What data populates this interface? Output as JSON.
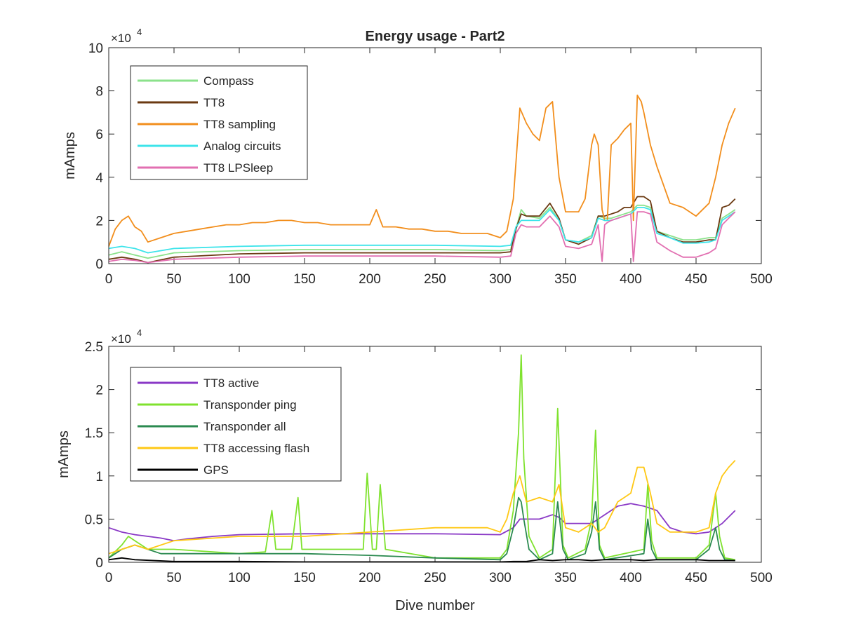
{
  "chart_data": [
    {
      "type": "line",
      "title": "Energy usage - Part2",
      "xlabel": "",
      "ylabel": "mAmps",
      "xlim": [
        0,
        500
      ],
      "ylim": [
        0,
        100000
      ],
      "xticks": [
        "0",
        "50",
        "100",
        "150",
        "200",
        "250",
        "300",
        "350",
        "400",
        "450",
        "500"
      ],
      "yticks": [
        "0",
        "2",
        "4",
        "6",
        "8",
        "10"
      ],
      "y_exponent_base": "×10",
      "y_exponent": "4",
      "legend_position": "top-left",
      "series": [
        {
          "name": "Compass",
          "color": "#8be28b",
          "x": [
            0,
            10,
            20,
            30,
            50,
            100,
            150,
            200,
            250,
            300,
            308,
            312,
            316,
            320,
            330,
            338,
            345,
            350,
            360,
            370,
            375,
            380,
            385,
            390,
            395,
            400,
            405,
            410,
            415,
            420,
            430,
            440,
            450,
            460,
            465,
            470,
            475,
            480
          ],
          "y": [
            4000,
            5500,
            4000,
            2500,
            5000,
            6000,
            6500,
            6500,
            6500,
            6000,
            6500,
            16000,
            25000,
            22000,
            21000,
            26000,
            20000,
            11000,
            10000,
            13000,
            22000,
            21000,
            21000,
            22000,
            23000,
            24000,
            27000,
            27000,
            26000,
            15000,
            13000,
            11000,
            11000,
            12000,
            12000,
            21000,
            23000,
            25000
          ]
        },
        {
          "name": "TT8",
          "color": "#6b3a12",
          "x": [
            0,
            10,
            20,
            30,
            50,
            100,
            150,
            200,
            250,
            300,
            308,
            312,
            316,
            320,
            330,
            338,
            345,
            350,
            360,
            370,
            375,
            380,
            385,
            390,
            395,
            400,
            405,
            410,
            415,
            420,
            430,
            440,
            450,
            460,
            465,
            470,
            475,
            480
          ],
          "y": [
            2000,
            3000,
            2000,
            500,
            3000,
            4500,
            5000,
            5000,
            5000,
            5000,
            5500,
            16000,
            23000,
            22000,
            22000,
            28000,
            21000,
            11000,
            9000,
            12000,
            22000,
            22000,
            23000,
            24000,
            26000,
            26000,
            31000,
            31000,
            29000,
            15000,
            12000,
            10000,
            10000,
            11000,
            11000,
            26000,
            27000,
            30000
          ]
        },
        {
          "name": "TT8 sampling",
          "color": "#f28e1c",
          "x": [
            0,
            5,
            10,
            15,
            20,
            25,
            30,
            40,
            50,
            60,
            70,
            80,
            90,
            100,
            110,
            120,
            130,
            140,
            150,
            160,
            170,
            180,
            190,
            200,
            205,
            210,
            220,
            230,
            240,
            250,
            260,
            270,
            280,
            290,
            300,
            305,
            310,
            315,
            320,
            325,
            330,
            335,
            340,
            345,
            350,
            360,
            365,
            370,
            372,
            375,
            378,
            380,
            382,
            385,
            390,
            395,
            400,
            402,
            405,
            408,
            410,
            415,
            420,
            430,
            440,
            450,
            460,
            465,
            470,
            475,
            480
          ],
          "y": [
            8000,
            16000,
            20000,
            22000,
            17000,
            15000,
            10000,
            12000,
            14000,
            15000,
            16000,
            17000,
            18000,
            18000,
            19000,
            19000,
            20000,
            20000,
            19000,
            19000,
            18000,
            18000,
            18000,
            18000,
            25000,
            17000,
            17000,
            16000,
            16000,
            15000,
            15000,
            14000,
            14000,
            14000,
            12000,
            15000,
            30000,
            72000,
            65000,
            60000,
            57000,
            72000,
            75000,
            40000,
            24000,
            24000,
            30000,
            55000,
            60000,
            55000,
            25000,
            20000,
            20000,
            55000,
            58000,
            62000,
            65000,
            20000,
            78000,
            75000,
            70000,
            55000,
            45000,
            28000,
            26000,
            22000,
            28000,
            40000,
            55000,
            65000,
            72000
          ]
        },
        {
          "name": "Analog circuits",
          "color": "#3de4ea",
          "x": [
            0,
            10,
            20,
            30,
            50,
            100,
            150,
            200,
            250,
            300,
            308,
            312,
            316,
            320,
            330,
            338,
            345,
            350,
            360,
            370,
            375,
            380,
            385,
            390,
            395,
            400,
            405,
            410,
            415,
            420,
            430,
            440,
            450,
            460,
            465,
            470,
            475,
            480
          ],
          "y": [
            7000,
            8000,
            7000,
            5000,
            7000,
            8000,
            8500,
            8500,
            8500,
            8000,
            8500,
            17000,
            20000,
            20000,
            20000,
            25000,
            20000,
            11000,
            10000,
            12000,
            21000,
            20000,
            20000,
            21000,
            22000,
            23000,
            26000,
            26000,
            25000,
            14000,
            12000,
            9500,
            9500,
            10000,
            11000,
            20000,
            22000,
            24000
          ]
        },
        {
          "name": "TT8 LPSleep",
          "color": "#e26fb1",
          "x": [
            0,
            10,
            20,
            30,
            50,
            100,
            150,
            200,
            250,
            300,
            308,
            312,
            316,
            320,
            330,
            338,
            345,
            350,
            360,
            370,
            375,
            378,
            380,
            382,
            385,
            390,
            395,
            400,
            402,
            405,
            410,
            415,
            420,
            430,
            440,
            450,
            460,
            465,
            470,
            475,
            480
          ],
          "y": [
            1000,
            2000,
            1500,
            500,
            2000,
            3000,
            3500,
            3500,
            3500,
            3000,
            3500,
            14000,
            18000,
            17000,
            17000,
            22000,
            17000,
            8000,
            7000,
            9000,
            18000,
            1000,
            18000,
            19000,
            20000,
            21000,
            22000,
            23000,
            1000,
            24000,
            24000,
            23000,
            10000,
            6000,
            3000,
            3000,
            5000,
            7000,
            18000,
            21000,
            24000
          ]
        }
      ]
    },
    {
      "type": "line",
      "title": "",
      "xlabel": "Dive number",
      "ylabel": "mAmps",
      "xlim": [
        0,
        500
      ],
      "ylim": [
        0,
        25000
      ],
      "xticks": [
        "0",
        "50",
        "100",
        "150",
        "200",
        "250",
        "300",
        "350",
        "400",
        "450",
        "500"
      ],
      "yticks": [
        "0",
        "0.5",
        "1",
        "1.5",
        "2",
        "2.5"
      ],
      "y_exponent_base": "×10",
      "y_exponent": "4",
      "legend_position": "top-left",
      "series": [
        {
          "name": "TT8 active",
          "color": "#8a39c6",
          "x": [
            0,
            10,
            20,
            30,
            40,
            50,
            60,
            80,
            100,
            150,
            200,
            250,
            300,
            310,
            315,
            320,
            330,
            340,
            345,
            350,
            360,
            370,
            380,
            390,
            400,
            410,
            420,
            430,
            440,
            450,
            460,
            470,
            480
          ],
          "y": [
            4000,
            3500,
            3200,
            3000,
            2800,
            2500,
            2700,
            3000,
            3200,
            3300,
            3300,
            3300,
            3200,
            4000,
            5000,
            5000,
            5000,
            5500,
            5200,
            4500,
            4500,
            4500,
            5500,
            6500,
            6800,
            6500,
            6000,
            4000,
            3500,
            3300,
            3500,
            4500,
            6000
          ]
        },
        {
          "name": "Transponder ping",
          "color": "#7fe22e",
          "x": [
            0,
            10,
            15,
            20,
            30,
            50,
            100,
            120,
            125,
            128,
            140,
            145,
            148,
            160,
            195,
            198,
            202,
            205,
            208,
            212,
            250,
            300,
            305,
            310,
            314,
            316,
            318,
            322,
            330,
            340,
            344,
            348,
            352,
            365,
            370,
            373,
            376,
            380,
            410,
            413,
            416,
            420,
            450,
            460,
            465,
            468,
            472,
            480
          ],
          "y": [
            500,
            2000,
            3000,
            2500,
            1500,
            1500,
            1000,
            1200,
            6000,
            1500,
            1500,
            7500,
            1500,
            1500,
            1500,
            10300,
            1500,
            1500,
            9000,
            1500,
            500,
            500,
            1500,
            6000,
            15000,
            24000,
            12000,
            3000,
            500,
            1500,
            17800,
            2000,
            500,
            1500,
            5000,
            15300,
            2000,
            500,
            1500,
            9000,
            2500,
            500,
            500,
            2000,
            8000,
            3000,
            500,
            300
          ]
        },
        {
          "name": "Transponder all",
          "color": "#2b8a50",
          "x": [
            0,
            10,
            20,
            40,
            100,
            150,
            200,
            250,
            300,
            305,
            310,
            314,
            316,
            318,
            322,
            330,
            340,
            344,
            348,
            352,
            365,
            370,
            373,
            376,
            380,
            410,
            413,
            416,
            420,
            450,
            460,
            465,
            468,
            472,
            480
          ],
          "y": [
            500,
            1500,
            2000,
            1000,
            1000,
            1000,
            800,
            500,
            300,
            1000,
            4000,
            7500,
            7000,
            5000,
            1500,
            300,
            1000,
            7000,
            1500,
            300,
            1000,
            3500,
            7000,
            1500,
            300,
            1000,
            5000,
            1500,
            300,
            300,
            1500,
            4000,
            1500,
            300,
            200
          ]
        },
        {
          "name": "TT8 accessing flash",
          "color": "#ffc815",
          "x": [
            0,
            10,
            20,
            30,
            50,
            100,
            150,
            200,
            250,
            290,
            300,
            305,
            310,
            315,
            320,
            330,
            340,
            345,
            350,
            360,
            370,
            375,
            380,
            390,
            400,
            405,
            410,
            415,
            420,
            430,
            440,
            450,
            460,
            465,
            470,
            475,
            480
          ],
          "y": [
            1000,
            1500,
            2000,
            1500,
            2500,
            3000,
            3000,
            3500,
            4000,
            4000,
            3500,
            5000,
            8000,
            10000,
            7000,
            7500,
            7000,
            9000,
            4000,
            3500,
            4500,
            3500,
            4000,
            7000,
            8000,
            11000,
            11000,
            8000,
            4500,
            3500,
            3500,
            3500,
            4000,
            8000,
            10000,
            11000,
            11800
          ]
        },
        {
          "name": "GPS",
          "color": "#000000",
          "x": [
            0,
            10,
            20,
            50,
            100,
            150,
            200,
            250,
            300,
            310,
            320,
            330,
            340,
            350,
            360,
            370,
            380,
            390,
            400,
            410,
            420,
            430,
            440,
            450,
            460,
            470,
            480
          ],
          "y": [
            300,
            500,
            300,
            100,
            100,
            50,
            50,
            50,
            50,
            100,
            100,
            300,
            200,
            300,
            300,
            200,
            300,
            300,
            300,
            200,
            300,
            300,
            300,
            300,
            200,
            200,
            200
          ]
        }
      ]
    }
  ]
}
